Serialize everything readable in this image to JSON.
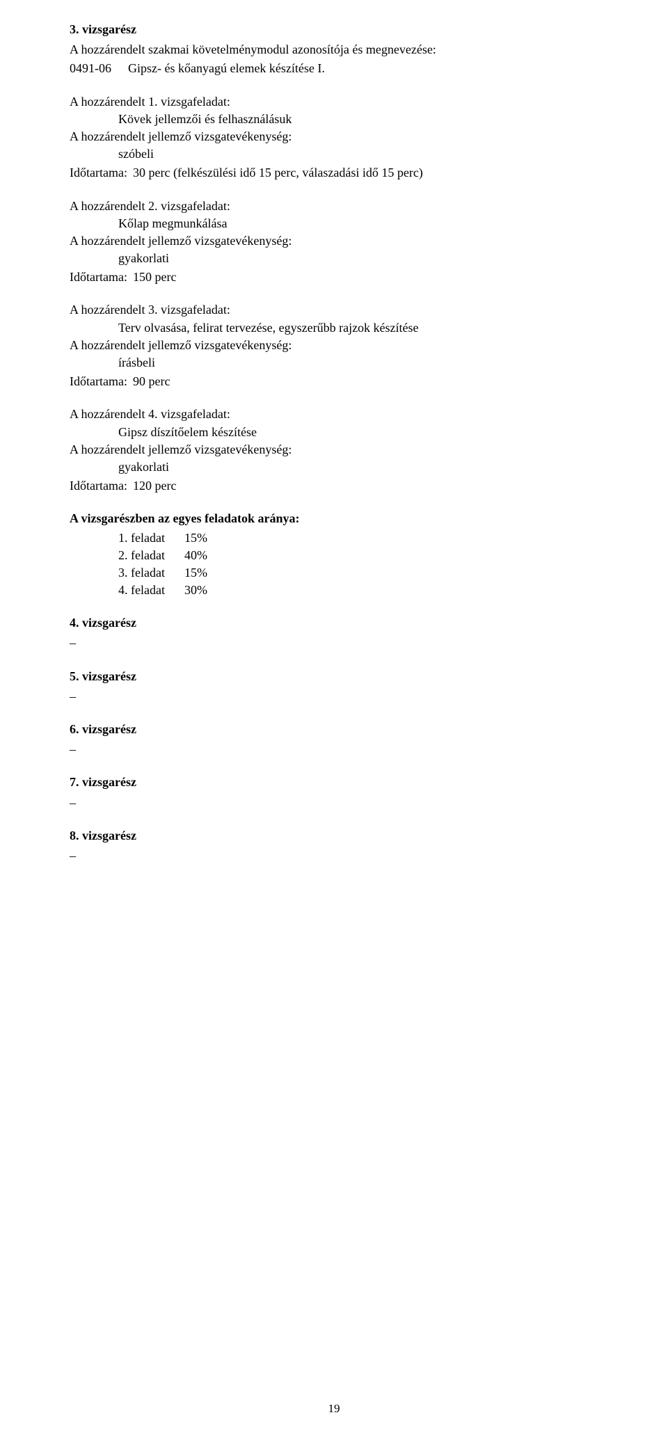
{
  "colors": {
    "text": "#000000",
    "background": "#ffffff"
  },
  "typography": {
    "font_family": "Times New Roman",
    "body_fontsize_pt": 13,
    "line_height": 1.4
  },
  "part3": {
    "heading": "3. vizsgarész",
    "module_intro": "A hozzárendelt szakmai követelménymodul azonosítója és megnevezése:",
    "module_code": "0491-06",
    "module_name": "Gipsz- és kőanyagú elemek készítése I.",
    "tasks": [
      {
        "title": "A hozzárendelt 1. vizsgafeladat:",
        "description": "Kövek jellemzői és felhasználásuk",
        "activity_label": "A hozzárendelt jellemző vizsgatevékenység:",
        "activity": "szóbeli",
        "duration_label": "Időtartama:",
        "duration": "30 perc (felkészülési idő 15 perc, válaszadási idő 15 perc)"
      },
      {
        "title": "A hozzárendelt 2. vizsgafeladat:",
        "description": "Kőlap megmunkálása",
        "activity_label": "A hozzárendelt jellemző vizsgatevékenység:",
        "activity": "gyakorlati",
        "duration_label": "Időtartama:",
        "duration": "150 perc"
      },
      {
        "title": "A hozzárendelt 3. vizsgafeladat:",
        "description": "Terv olvasása, felirat tervezése, egyszerűbb rajzok készítése",
        "activity_label": "A hozzárendelt jellemző vizsgatevékenység:",
        "activity": "írásbeli",
        "duration_label": "Időtartama:",
        "duration": "90 perc"
      },
      {
        "title": "A hozzárendelt 4. vizsgafeladat:",
        "description": "Gipsz díszítőelem készítése",
        "activity_label": "A hozzárendelt jellemző vizsgatevékenység:",
        "activity": "gyakorlati",
        "duration_label": "Időtartama:",
        "duration": "120 perc"
      }
    ],
    "weights_heading": "A vizsgarészben az egyes feladatok aránya:",
    "weights": [
      {
        "label": "1. feladat",
        "value": "15%"
      },
      {
        "label": "2. feladat",
        "value": "40%"
      },
      {
        "label": "3. feladat",
        "value": "15%"
      },
      {
        "label": "4. feladat",
        "value": "30%"
      }
    ]
  },
  "other_parts": [
    {
      "heading": "4. vizsgarész",
      "dash": "–"
    },
    {
      "heading": "5. vizsgarész",
      "dash": "–"
    },
    {
      "heading": "6. vizsgarész",
      "dash": "–"
    },
    {
      "heading": "7. vizsgarész",
      "dash": "–"
    },
    {
      "heading": "8. vizsgarész",
      "dash": "–"
    }
  ],
  "page_number": "19"
}
